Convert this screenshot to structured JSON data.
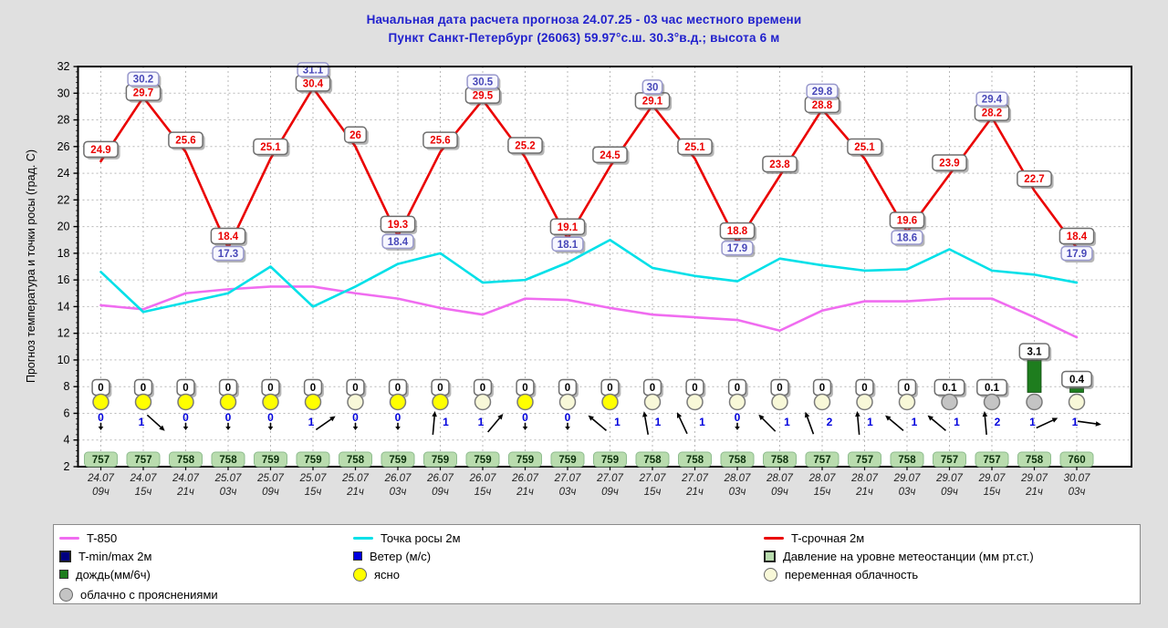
{
  "title": {
    "line1": "Начальная дата расчета прогноза 24.07.25  -  03 час местного времени",
    "line2": "Пункт  Санкт-Петербург (26063)    59.97°с.ш.   30.3°в.д.; высота 6 м"
  },
  "y_axis": {
    "label": "Прогноз температура и точки росы (град. С)",
    "min": 2,
    "max": 32,
    "step": 2
  },
  "colors": {
    "title": "#2121cd",
    "t2m": "#ea0000",
    "dew": "#00e0e8",
    "t850": "#f06cf0",
    "rain_bar": "#1e7d1e",
    "pressure_box": "#b9dcae",
    "pressure_text": "#0c300c",
    "clear_icon": "#ffff00",
    "partly_icon": "#f8f8d8",
    "cloudy_icon": "#c4c4c4",
    "wind_text": "#0000dd",
    "minmax_text": "#4848b8",
    "grid": "#b8b8b8"
  },
  "chart_data": {
    "type": "line",
    "title": "Метеограмма прогноза погоды",
    "ylim": [
      2,
      32
    ],
    "grid": true,
    "x_labels": [
      {
        "date": "24.07",
        "hour": "09ч"
      },
      {
        "date": "24.07",
        "hour": "15ч"
      },
      {
        "date": "24.07",
        "hour": "21ч"
      },
      {
        "date": "25.07",
        "hour": "03ч"
      },
      {
        "date": "25.07",
        "hour": "09ч"
      },
      {
        "date": "25.07",
        "hour": "15ч"
      },
      {
        "date": "25.07",
        "hour": "21ч"
      },
      {
        "date": "26.07",
        "hour": "03ч"
      },
      {
        "date": "26.07",
        "hour": "09ч"
      },
      {
        "date": "26.07",
        "hour": "15ч"
      },
      {
        "date": "26.07",
        "hour": "21ч"
      },
      {
        "date": "27.07",
        "hour": "03ч"
      },
      {
        "date": "27.07",
        "hour": "09ч"
      },
      {
        "date": "27.07",
        "hour": "15ч"
      },
      {
        "date": "27.07",
        "hour": "21ч"
      },
      {
        "date": "28.07",
        "hour": "03ч"
      },
      {
        "date": "28.07",
        "hour": "09ч"
      },
      {
        "date": "28.07",
        "hour": "15ч"
      },
      {
        "date": "28.07",
        "hour": "21ч"
      },
      {
        "date": "29.07",
        "hour": "03ч"
      },
      {
        "date": "29.07",
        "hour": "09ч"
      },
      {
        "date": "29.07",
        "hour": "15ч"
      },
      {
        "date": "29.07",
        "hour": "21ч"
      },
      {
        "date": "30.07",
        "hour": "03ч"
      }
    ],
    "series": [
      {
        "name": "T-срочная 2м",
        "labeled": true,
        "values": [
          24.9,
          29.7,
          25.6,
          18.4,
          25.1,
          30.4,
          26,
          19.3,
          25.6,
          29.5,
          25.2,
          19.1,
          24.5,
          29.1,
          25.1,
          18.8,
          23.8,
          28.8,
          25.1,
          19.6,
          23.9,
          28.2,
          22.7,
          18.4
        ]
      },
      {
        "name": "Точка росы 2м",
        "labeled": false,
        "values": [
          16.6,
          13.6,
          14.3,
          15.0,
          17.0,
          14.0,
          15.5,
          17.2,
          18.0,
          15.8,
          16.0,
          17.3,
          19.0,
          16.9,
          16.3,
          15.9,
          17.6,
          17.1,
          16.7,
          16.8,
          18.3,
          16.7,
          16.4,
          15.8
        ]
      },
      {
        "name": "T-850",
        "labeled": false,
        "values": [
          14.1,
          13.8,
          15.0,
          15.3,
          15.5,
          15.5,
          15.0,
          14.6,
          13.9,
          13.4,
          14.6,
          14.5,
          13.9,
          13.4,
          13.2,
          13.0,
          12.2,
          13.7,
          14.4,
          14.4,
          14.6,
          14.6,
          13.2,
          11.7
        ]
      }
    ],
    "tminmax_labels": [
      {
        "col": 2,
        "value": 30.2,
        "kind": "max"
      },
      {
        "col": 4,
        "value": 17.3,
        "kind": "min"
      },
      {
        "col": 6,
        "value": 31.1,
        "kind": "max"
      },
      {
        "col": 8,
        "value": 18.4,
        "kind": "min"
      },
      {
        "col": 10,
        "value": 30.5,
        "kind": "max"
      },
      {
        "col": 12,
        "value": 18.1,
        "kind": "min"
      },
      {
        "col": 14,
        "value": 30,
        "kind": "max"
      },
      {
        "col": 16,
        "value": 17.9,
        "kind": "min"
      },
      {
        "col": 18,
        "value": 29.8,
        "kind": "max"
      },
      {
        "col": 20,
        "value": 18.6,
        "kind": "min"
      },
      {
        "col": 22,
        "value": 29.4,
        "kind": "max"
      },
      {
        "col": 24,
        "value": 17.9,
        "kind": "min"
      }
    ],
    "precipitation_mm_6h": [
      0,
      0,
      0,
      0,
      0,
      0,
      0,
      0,
      0,
      0,
      0,
      0,
      0,
      0,
      0,
      0,
      0,
      0,
      0,
      0,
      0.1,
      0.1,
      3.1,
      0.4
    ],
    "pressure_mm_hg": [
      757,
      757,
      758,
      758,
      759,
      759,
      758,
      759,
      759,
      759,
      759,
      759,
      759,
      758,
      758,
      758,
      758,
      757,
      757,
      758,
      757,
      757,
      758,
      760
    ],
    "cloud": [
      "clear",
      "clear",
      "clear",
      "clear",
      "clear",
      "clear",
      "partly",
      "clear",
      "clear",
      "partly",
      "clear",
      "partly",
      "clear",
      "partly",
      "partly",
      "partly",
      "partly",
      "partly",
      "partly",
      "partly",
      "cloudy",
      "cloudy",
      "cloudy",
      "partly"
    ],
    "wind_m_s": [
      {
        "speed": 0
      },
      {
        "speed": 1,
        "dir": 42
      },
      {
        "speed": 0
      },
      {
        "speed": 0
      },
      {
        "speed": 0
      },
      {
        "speed": 1,
        "dir": -35
      },
      {
        "speed": 0
      },
      {
        "speed": 0
      },
      {
        "speed": 1,
        "dir": -85
      },
      {
        "speed": 1,
        "dir": -50
      },
      {
        "speed": 0
      },
      {
        "speed": 0
      },
      {
        "speed": 1,
        "dir": -140
      },
      {
        "speed": 1,
        "dir": -100
      },
      {
        "speed": 1,
        "dir": -115
      },
      {
        "speed": 0
      },
      {
        "speed": 1,
        "dir": -135
      },
      {
        "speed": 2,
        "dir": -110
      },
      {
        "speed": 1,
        "dir": -95
      },
      {
        "speed": 1,
        "dir": -140
      },
      {
        "speed": 1,
        "dir": -140
      },
      {
        "speed": 2,
        "dir": -95
      },
      {
        "speed": 1,
        "dir": -25
      },
      {
        "speed": 1,
        "dir": 8
      }
    ]
  },
  "legend": {
    "items": [
      {
        "label": "T-850",
        "marker": "line",
        "color": "#f06cf0",
        "row": 0,
        "col": 0
      },
      {
        "label": "Точка росы 2м",
        "marker": "line",
        "color": "#00e0e8",
        "row": 0,
        "col": 1
      },
      {
        "label": "T-срочная 2м",
        "marker": "line",
        "color": "#ea0000",
        "row": 0,
        "col": 2
      },
      {
        "label": "T-min/max 2м",
        "marker": "square",
        "color": "#000080",
        "row": 1,
        "col": 0
      },
      {
        "label": "Ветер (м/с)",
        "marker": "square-small",
        "color": "#0000e0",
        "row": 1,
        "col": 1
      },
      {
        "label": "Давление на уровне метеостанции (мм рт.ст.)",
        "marker": "square",
        "color": "#b9dcae",
        "row": 1,
        "col": 2
      },
      {
        "label": "дождь(мм/6ч)",
        "marker": "square-small",
        "color": "#1e7d1e",
        "row": 2,
        "col": 0
      },
      {
        "label": "ясно",
        "marker": "circle",
        "color": "#ffff00",
        "row": 2,
        "col": 1
      },
      {
        "label": "переменная облачность",
        "marker": "circle",
        "color": "#f8f8d8",
        "row": 2,
        "col": 2
      },
      {
        "label": "облачно с прояснениями",
        "marker": "circle",
        "color": "#c4c4c4",
        "row": 3,
        "col": 0
      }
    ]
  }
}
